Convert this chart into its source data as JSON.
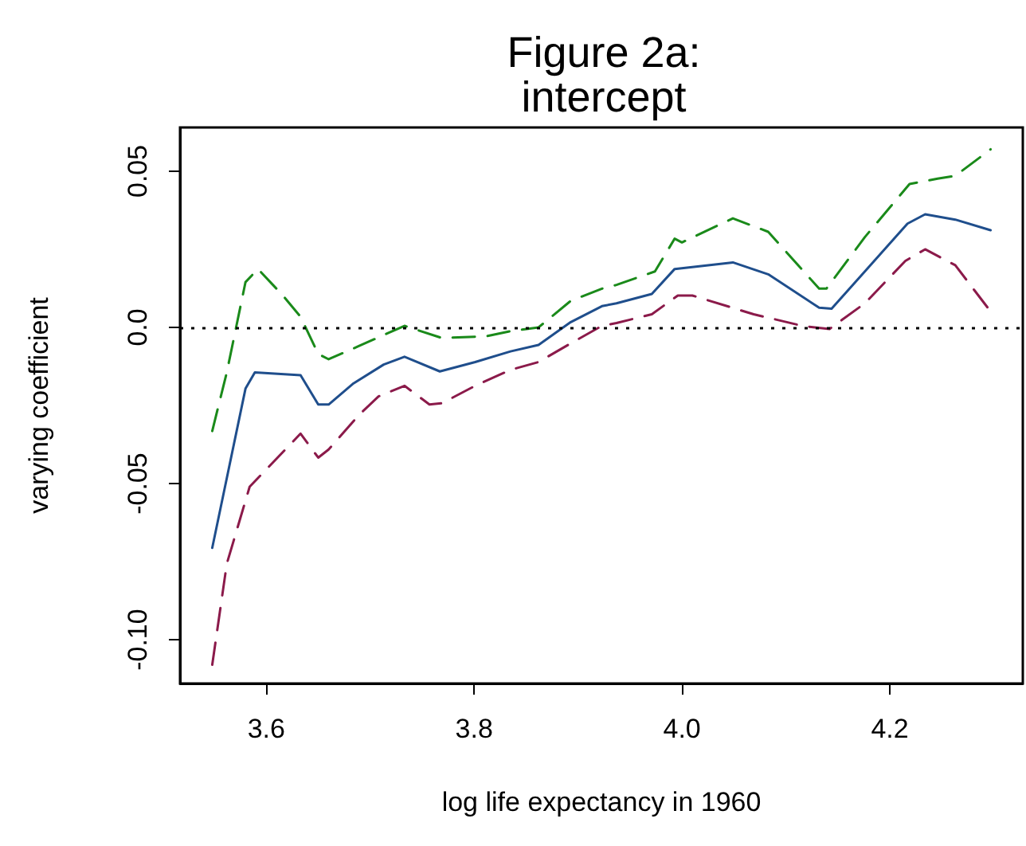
{
  "chart_data": {
    "type": "line",
    "title": "Figure 2a:\nintercept",
    "xlabel": "log life expectancy in 1960",
    "ylabel": "varying coefficient",
    "xlim": [
      3.517,
      4.328
    ],
    "ylim": [
      -0.114,
      0.064
    ],
    "xticks": [
      3.6,
      3.8,
      {
        "value": 4,
        "label": "4.0"
      },
      4.2
    ],
    "yticks": [
      {
        "value": -0.1,
        "label": "-0.10"
      },
      -0.05,
      {
        "value": 0,
        "label": "0.0"
      },
      0.05
    ],
    "marker": "none",
    "grid": false,
    "ref_lines": [
      {
        "axis": "y",
        "value": 0,
        "label": null,
        "color": "#000000",
        "line_style": "dotted"
      }
    ],
    "series": [
      {
        "color": "#1f4e8c",
        "line_style": "solid",
        "x": [
          3.548,
          3.58,
          3.589,
          3.633,
          3.65,
          3.66,
          3.684,
          3.713,
          3.733,
          3.767,
          3.801,
          3.835,
          3.862,
          3.893,
          3.923,
          3.937,
          3.971,
          3.993,
          4.049,
          4.083,
          4.132,
          4.144,
          4.176,
          4.217,
          4.234,
          4.263,
          4.297
        ],
        "values": [
          -0.0706,
          -0.0196,
          -0.0144,
          -0.0153,
          -0.0247,
          -0.0247,
          -0.0179,
          -0.0119,
          -0.0094,
          -0.0141,
          -0.0111,
          -0.0077,
          -0.0056,
          0.0017,
          0.0068,
          0.0077,
          0.0107,
          0.0187,
          0.0208,
          0.017,
          0.0063,
          0.006,
          0.0179,
          0.0332,
          0.0362,
          0.0345,
          0.0311
        ]
      },
      {
        "color": "#1a8a1a",
        "line_style": "dashed",
        "x": [
          3.548,
          3.562,
          3.58,
          3.592,
          3.616,
          3.633,
          3.65,
          3.66,
          3.689,
          3.733,
          3.769,
          3.811,
          3.835,
          3.862,
          3.893,
          3.923,
          3.937,
          3.974,
          3.993,
          4.0,
          4.049,
          4.083,
          4.132,
          4.139,
          4.176,
          4.219,
          4.246,
          4.263,
          4.297
        ],
        "values": [
          -0.0332,
          -0.0144,
          0.0145,
          0.0187,
          0.0102,
          0.0034,
          -0.0085,
          -0.0102,
          -0.006,
          0.0005,
          -0.0034,
          -0.0029,
          -0.0012,
          0.0,
          0.0085,
          0.0124,
          0.0136,
          0.0179,
          0.0284,
          0.0272,
          0.0349,
          0.0306,
          0.0124,
          0.0124,
          0.0289,
          0.0459,
          0.0476,
          0.0485,
          0.057
        ]
      },
      {
        "color": "#8b1a4a",
        "line_style": "dashed",
        "x": [
          3.548,
          3.562,
          3.584,
          3.633,
          3.65,
          3.66,
          3.689,
          3.708,
          3.733,
          3.757,
          3.769,
          3.801,
          3.835,
          3.862,
          3.893,
          3.923,
          3.937,
          3.971,
          3.996,
          4.01,
          4.069,
          4.117,
          4.142,
          4.176,
          4.215,
          4.234,
          4.263,
          4.297
        ],
        "values": [
          -0.108,
          -0.0757,
          -0.051,
          -0.034,
          -0.0417,
          -0.0391,
          -0.0281,
          -0.0221,
          -0.0187,
          -0.0247,
          -0.0243,
          -0.0187,
          -0.0136,
          -0.0111,
          -0.0051,
          0.0005,
          0.0014,
          0.0042,
          0.0102,
          0.0102,
          0.0042,
          0.0004,
          -0.0005,
          0.0077,
          0.0213,
          0.025,
          0.0199,
          0.0051
        ]
      }
    ]
  }
}
